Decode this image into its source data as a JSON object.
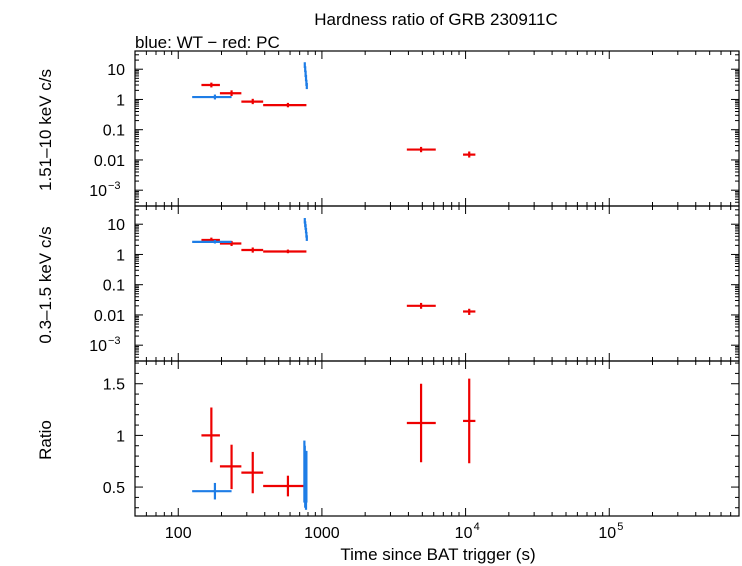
{
  "chart_data": {
    "type": "scatter",
    "title": "Hardness ratio of GRB 230911C",
    "subtitle": "blue: WT − red: PC",
    "xlabel": "Time since BAT trigger (s)",
    "xscale": "log",
    "xlim": [
      50,
      800000
    ],
    "x_ticks": [
      {
        "value": 100,
        "label": "100"
      },
      {
        "value": 1000,
        "label": "1000"
      },
      {
        "value": 10000,
        "base": "10",
        "exp": "4"
      },
      {
        "value": 100000,
        "base": "10",
        "exp": "5"
      }
    ],
    "colors": {
      "WT": "#1e7de6",
      "PC": "#ee0000"
    },
    "panels": [
      {
        "id": "hard",
        "ylabel": "1.51–10 keV c/s",
        "yscale": "log",
        "ylim": [
          0.0003,
          40
        ],
        "y_ticks": [
          {
            "value": 10,
            "label": "10"
          },
          {
            "value": 1,
            "label": "1"
          },
          {
            "value": 0.1,
            "label": "0.1"
          },
          {
            "value": 0.01,
            "label": "0.01"
          },
          {
            "value": 0.001,
            "base": "10",
            "exp": "−3"
          }
        ],
        "series": [
          {
            "name": "PC",
            "points": [
              {
                "x": 170,
                "xlo": 145,
                "xhi": 195,
                "y": 3.0,
                "ylo": 2.5,
                "yhi": 3.6
              },
              {
                "x": 235,
                "xlo": 195,
                "xhi": 275,
                "y": 1.6,
                "ylo": 1.3,
                "yhi": 2.0
              },
              {
                "x": 330,
                "xlo": 275,
                "xhi": 390,
                "y": 0.85,
                "ylo": 0.7,
                "yhi": 1.05
              },
              {
                "x": 580,
                "xlo": 390,
                "xhi": 780,
                "y": 0.65,
                "ylo": 0.55,
                "yhi": 0.77
              },
              {
                "x": 4900,
                "xlo": 3900,
                "xhi": 6200,
                "y": 0.022,
                "ylo": 0.018,
                "yhi": 0.027
              },
              {
                "x": 10600,
                "xlo": 9600,
                "xhi": 11700,
                "y": 0.015,
                "ylo": 0.012,
                "yhi": 0.019
              }
            ]
          },
          {
            "name": "WT",
            "points": [
              {
                "x": 180,
                "xlo": 125,
                "xhi": 235,
                "y": 1.2,
                "ylo": 1.0,
                "yhi": 1.45
              },
              {
                "x": 760,
                "xlo": 755,
                "xhi": 765,
                "y": 14,
                "ylo": 11,
                "yhi": 17
              },
              {
                "x": 765,
                "xlo": 760,
                "xhi": 770,
                "y": 10,
                "ylo": 8,
                "yhi": 12.5
              },
              {
                "x": 770,
                "xlo": 765,
                "xhi": 775,
                "y": 7,
                "ylo": 5.5,
                "yhi": 9
              },
              {
                "x": 775,
                "xlo": 770,
                "xhi": 780,
                "y": 5,
                "ylo": 4,
                "yhi": 6.5
              },
              {
                "x": 780,
                "xlo": 775,
                "xhi": 785,
                "y": 3.5,
                "ylo": 2.8,
                "yhi": 4.5
              },
              {
                "x": 785,
                "xlo": 780,
                "xhi": 790,
                "y": 2.8,
                "ylo": 2.2,
                "yhi": 3.5
              }
            ]
          }
        ]
      },
      {
        "id": "soft",
        "ylabel": "0.3–1.5 keV c/s",
        "yscale": "log",
        "ylim": [
          0.0003,
          40
        ],
        "y_ticks": [
          {
            "value": 10,
            "label": "10"
          },
          {
            "value": 1,
            "label": "1"
          },
          {
            "value": 0.1,
            "label": "0.1"
          },
          {
            "value": 0.01,
            "label": "0.01"
          },
          {
            "value": 0.001,
            "base": "10",
            "exp": "−3"
          }
        ],
        "series": [
          {
            "name": "PC",
            "points": [
              {
                "x": 170,
                "xlo": 145,
                "xhi": 195,
                "y": 3.0,
                "ylo": 2.5,
                "yhi": 3.6
              },
              {
                "x": 235,
                "xlo": 195,
                "xhi": 275,
                "y": 2.3,
                "ylo": 1.9,
                "yhi": 2.8
              },
              {
                "x": 330,
                "xlo": 275,
                "xhi": 390,
                "y": 1.4,
                "ylo": 1.15,
                "yhi": 1.7
              },
              {
                "x": 580,
                "xlo": 390,
                "xhi": 780,
                "y": 1.25,
                "ylo": 1.1,
                "yhi": 1.45
              },
              {
                "x": 4900,
                "xlo": 3900,
                "xhi": 6200,
                "y": 0.02,
                "ylo": 0.016,
                "yhi": 0.025
              },
              {
                "x": 10600,
                "xlo": 9600,
                "xhi": 11700,
                "y": 0.013,
                "ylo": 0.01,
                "yhi": 0.016
              }
            ]
          },
          {
            "name": "WT",
            "points": [
              {
                "x": 180,
                "xlo": 125,
                "xhi": 235,
                "y": 2.6,
                "ylo": 2.3,
                "yhi": 3.0
              },
              {
                "x": 760,
                "xlo": 755,
                "xhi": 765,
                "y": 13,
                "ylo": 10.5,
                "yhi": 16
              },
              {
                "x": 765,
                "xlo": 760,
                "xhi": 770,
                "y": 10,
                "ylo": 8,
                "yhi": 12.5
              },
              {
                "x": 770,
                "xlo": 765,
                "xhi": 775,
                "y": 8,
                "ylo": 6.5,
                "yhi": 10
              },
              {
                "x": 775,
                "xlo": 770,
                "xhi": 780,
                "y": 6,
                "ylo": 5,
                "yhi": 7.5
              },
              {
                "x": 780,
                "xlo": 775,
                "xhi": 785,
                "y": 4.5,
                "ylo": 3.6,
                "yhi": 5.6
              },
              {
                "x": 785,
                "xlo": 780,
                "xhi": 790,
                "y": 3.5,
                "ylo": 2.8,
                "yhi": 4.3
              }
            ]
          }
        ]
      },
      {
        "id": "ratio",
        "ylabel": "Ratio",
        "yscale": "linear",
        "ylim": [
          0.22,
          1.72
        ],
        "y_ticks": [
          {
            "value": 1.5,
            "label": "1.5"
          },
          {
            "value": 1,
            "label": "1"
          },
          {
            "value": 0.5,
            "label": "0.5"
          }
        ],
        "series": [
          {
            "name": "PC",
            "points": [
              {
                "x": 170,
                "xlo": 145,
                "xhi": 195,
                "y": 1.0,
                "ylo": 0.74,
                "yhi": 1.27
              },
              {
                "x": 235,
                "xlo": 195,
                "xhi": 275,
                "y": 0.7,
                "ylo": 0.48,
                "yhi": 0.91
              },
              {
                "x": 330,
                "xlo": 275,
                "xhi": 390,
                "y": 0.64,
                "ylo": 0.44,
                "yhi": 0.84
              },
              {
                "x": 580,
                "xlo": 390,
                "xhi": 780,
                "y": 0.51,
                "ylo": 0.41,
                "yhi": 0.61
              },
              {
                "x": 4900,
                "xlo": 3900,
                "xhi": 6200,
                "y": 1.12,
                "ylo": 0.74,
                "yhi": 1.5
              },
              {
                "x": 10600,
                "xlo": 9600,
                "xhi": 11700,
                "y": 1.14,
                "ylo": 0.73,
                "yhi": 1.55
              }
            ]
          },
          {
            "name": "WT",
            "points": [
              {
                "x": 180,
                "xlo": 125,
                "xhi": 235,
                "y": 0.46,
                "ylo": 0.38,
                "yhi": 0.54
              },
              {
                "x": 755,
                "xlo": 752,
                "xhi": 758,
                "y": 0.6,
                "ylo": 0.35,
                "yhi": 0.95
              },
              {
                "x": 760,
                "xlo": 757,
                "xhi": 763,
                "y": 0.7,
                "ylo": 0.45,
                "yhi": 0.9
              },
              {
                "x": 765,
                "xlo": 762,
                "xhi": 768,
                "y": 0.55,
                "ylo": 0.3,
                "yhi": 0.8
              },
              {
                "x": 770,
                "xlo": 767,
                "xhi": 773,
                "y": 0.65,
                "ylo": 0.4,
                "yhi": 0.85
              },
              {
                "x": 775,
                "xlo": 772,
                "xhi": 778,
                "y": 0.5,
                "ylo": 0.28,
                "yhi": 0.75
              },
              {
                "x": 780,
                "xlo": 777,
                "xhi": 783,
                "y": 0.6,
                "ylo": 0.35,
                "yhi": 0.85
              }
            ]
          }
        ]
      }
    ]
  }
}
